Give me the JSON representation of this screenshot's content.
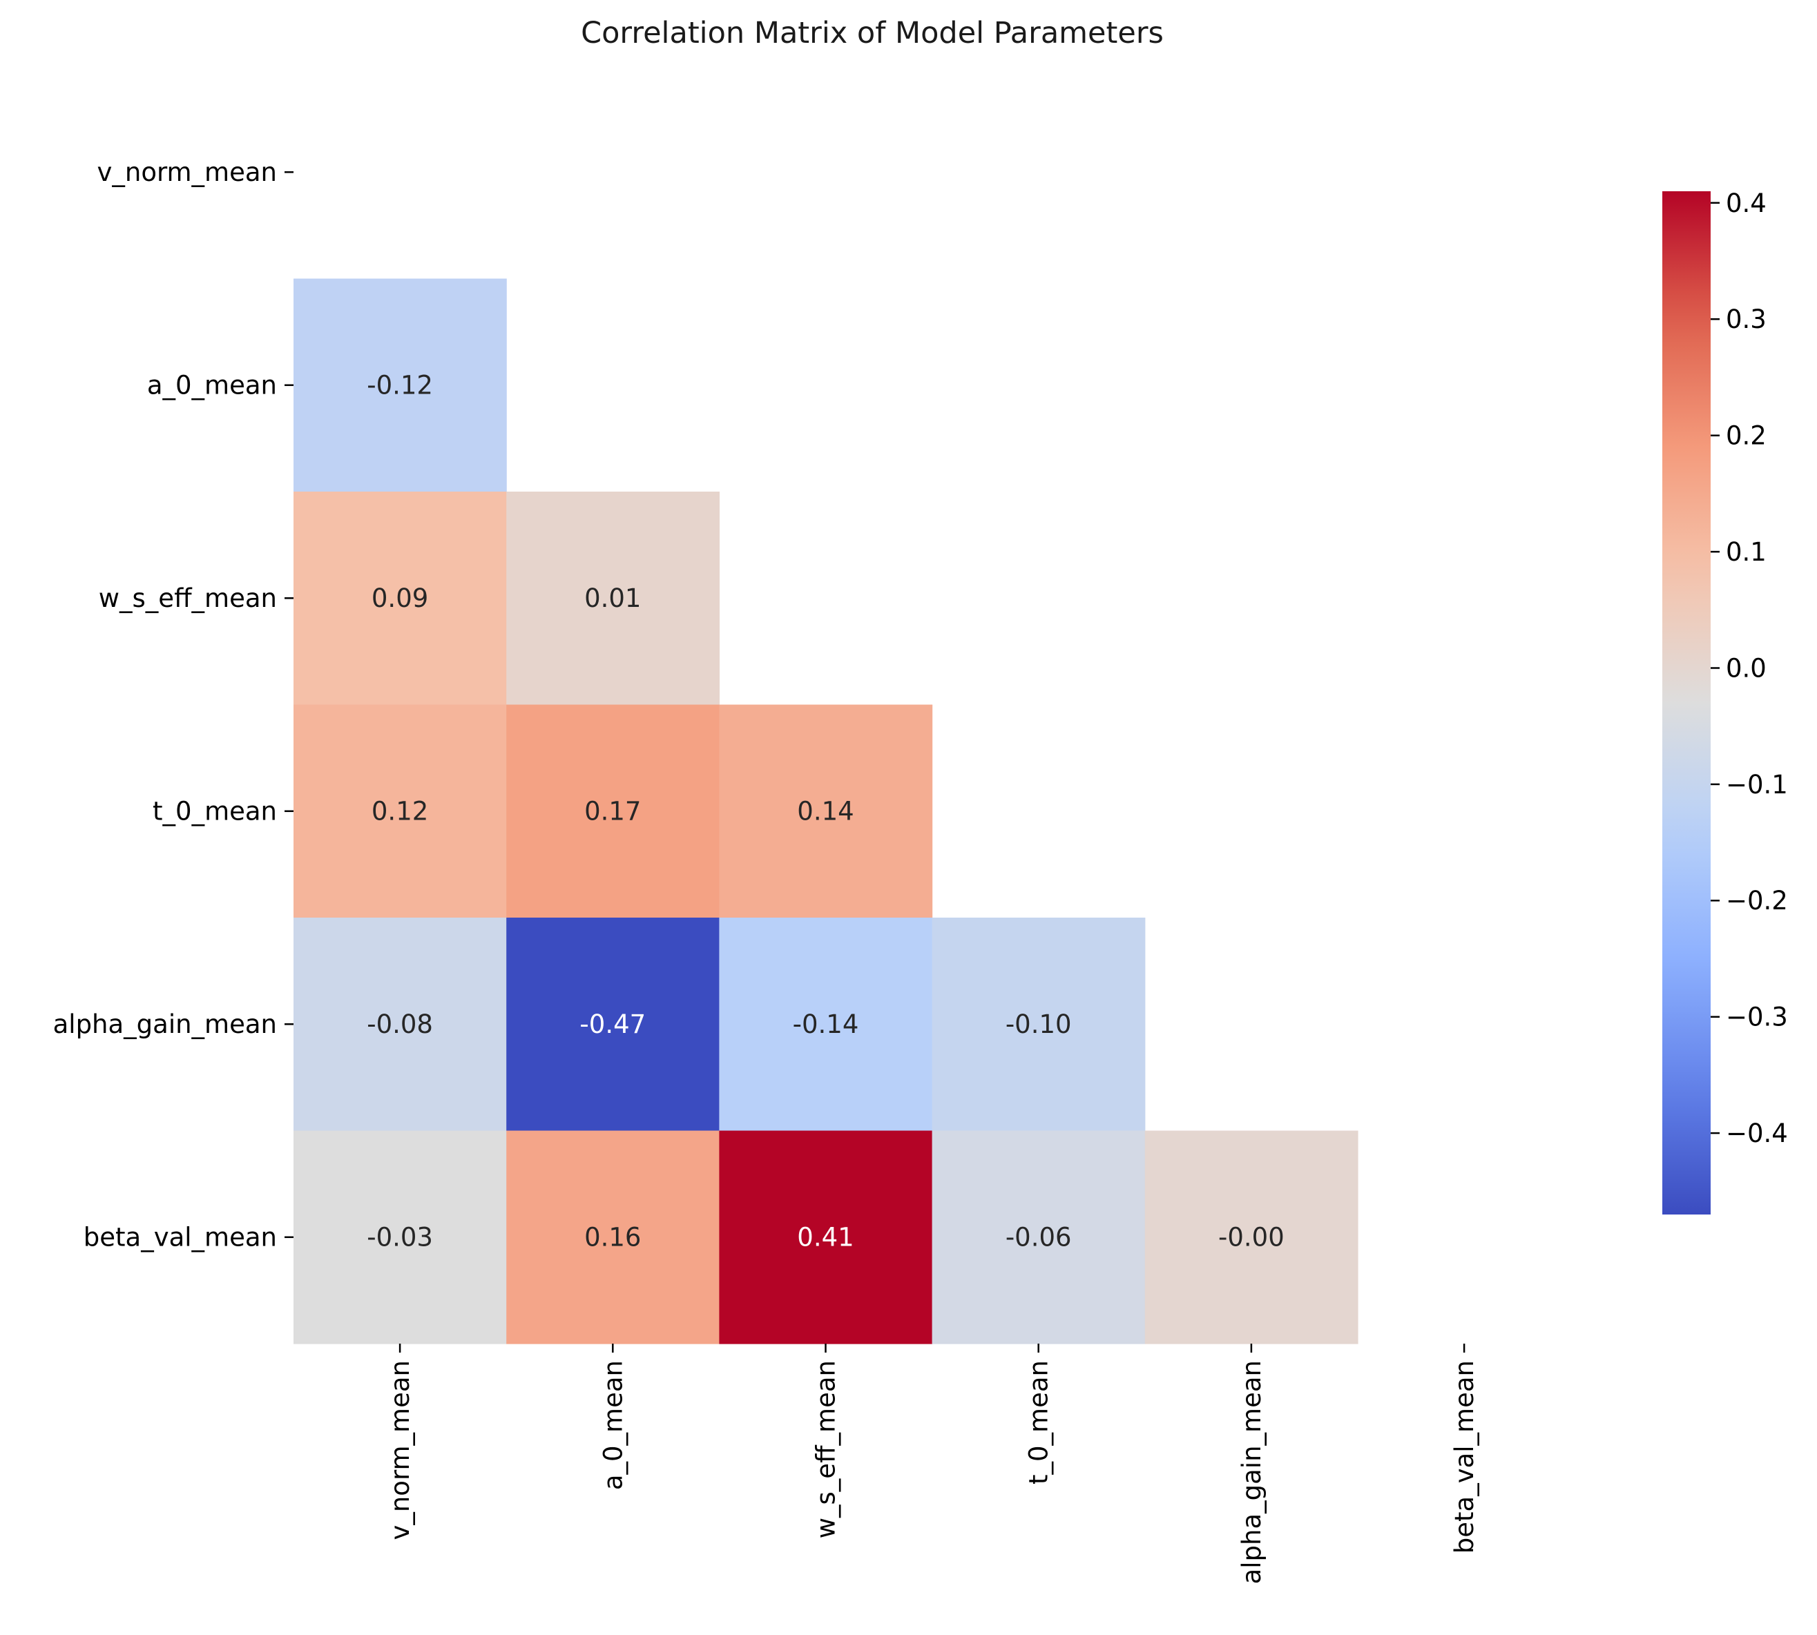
{
  "chart_data": {
    "type": "heatmap",
    "title": "Correlation Matrix of Model Parameters",
    "xlabel": "",
    "ylabel": "",
    "row_labels": [
      "v_norm_mean",
      "a_0_mean",
      "w_s_eff_mean",
      "t_0_mean",
      "alpha_gain_mean",
      "beta_val_mean"
    ],
    "col_labels": [
      "v_norm_mean",
      "a_0_mean",
      "w_s_eff_mean",
      "t_0_mean",
      "alpha_gain_mean",
      "beta_val_mean"
    ],
    "mask": "upper-triangle-including-diagonal",
    "values": [
      [
        null,
        null,
        null,
        null,
        null,
        null
      ],
      [
        -0.12,
        null,
        null,
        null,
        null,
        null
      ],
      [
        0.09,
        0.01,
        null,
        null,
        null,
        null
      ],
      [
        0.12,
        0.17,
        0.14,
        null,
        null,
        null
      ],
      [
        -0.08,
        -0.47,
        -0.14,
        -0.1,
        null,
        null
      ],
      [
        -0.03,
        0.16,
        0.41,
        -0.06,
        -0.0,
        null
      ]
    ],
    "cell_labels": [
      [
        null,
        null,
        null,
        null,
        null,
        null
      ],
      [
        "-0.12",
        null,
        null,
        null,
        null,
        null
      ],
      [
        "0.09",
        "0.01",
        null,
        null,
        null,
        null
      ],
      [
        "0.12",
        "0.17",
        "0.14",
        null,
        null,
        null
      ],
      [
        "-0.08",
        "-0.47",
        "-0.14",
        "-0.10",
        null,
        null
      ],
      [
        "-0.03",
        "0.16",
        "0.41",
        "-0.06",
        "-0.00",
        null
      ]
    ],
    "colormap": "coolwarm",
    "vmin": -0.47,
    "vmax": 0.41,
    "colorbar": {
      "ticks": [
        0.4,
        0.3,
        0.2,
        0.1,
        0.0,
        -0.1,
        -0.2,
        -0.3,
        -0.4
      ],
      "tick_labels": [
        "0.4",
        "0.3",
        "0.2",
        "0.1",
        "0.0",
        "−0.1",
        "−0.2",
        "−0.3",
        "−0.4"
      ],
      "placement": "right"
    },
    "grid": false,
    "x_tick_rotation": "vertical"
  }
}
